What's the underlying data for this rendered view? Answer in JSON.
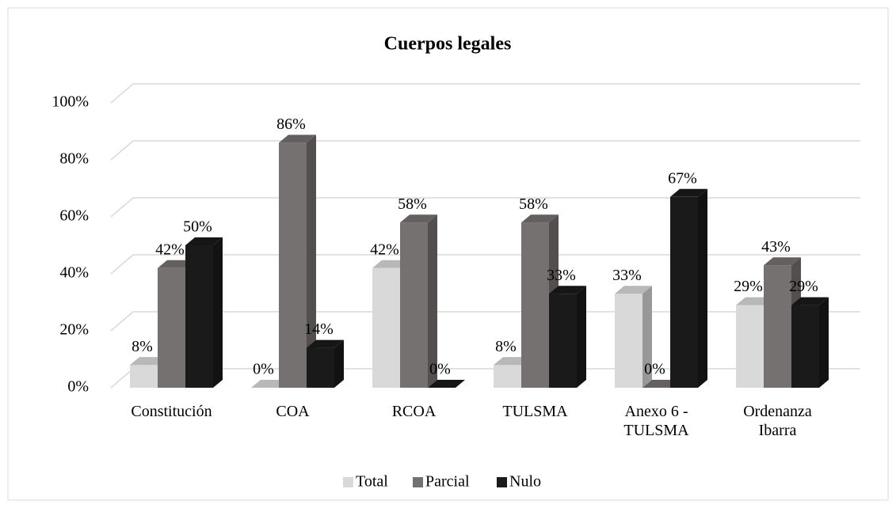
{
  "chart_data": {
    "type": "bar3d",
    "title": "Cuerpos legales",
    "categories": [
      "Constitución",
      "COA",
      "RCOA",
      "TULSMA",
      "Anexo 6 - TULSMA",
      "Ordenanza Ibarra"
    ],
    "series": [
      {
        "name": "Total",
        "color": "#d9d9d9",
        "values": [
          8,
          0,
          42,
          8,
          33,
          29
        ],
        "value_labels": [
          "8%",
          "0%",
          "42%",
          "8%",
          "33%",
          "29%"
        ]
      },
      {
        "name": "Parcial",
        "color": "#767171",
        "values": [
          42,
          86,
          58,
          58,
          0,
          43
        ],
        "value_labels": [
          "42%",
          "86%",
          "58%",
          "58%",
          "0%",
          "43%"
        ]
      },
      {
        "name": "Nulo",
        "color": "#1a1a1a",
        "values": [
          50,
          14,
          0,
          33,
          67,
          29
        ],
        "value_labels": [
          "50%",
          "14%",
          "0%",
          "33%",
          "67%",
          "29%"
        ]
      }
    ],
    "ylim": [
      0,
      100
    ],
    "yticks": [
      {
        "value": 0,
        "label": "0%"
      },
      {
        "value": 20,
        "label": "20%"
      },
      {
        "value": 40,
        "label": "40%"
      },
      {
        "value": 60,
        "label": "60%"
      },
      {
        "value": 80,
        "label": "80%"
      },
      {
        "value": 100,
        "label": "100%"
      }
    ],
    "grid": true,
    "legend": "bottom"
  }
}
